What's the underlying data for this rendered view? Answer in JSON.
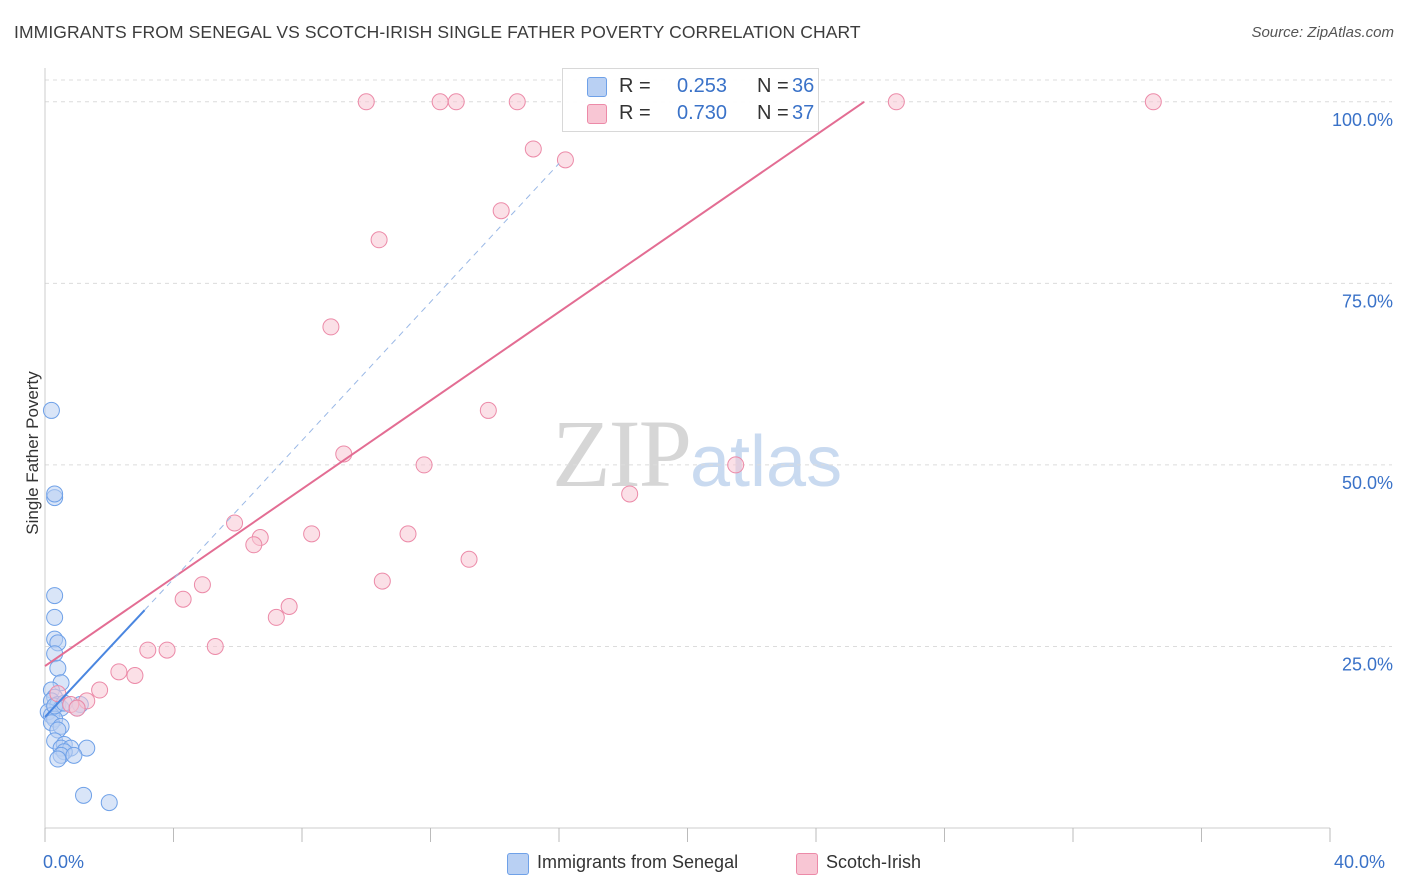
{
  "title": "IMMIGRANTS FROM SENEGAL VS SCOTCH-IRISH SINGLE FATHER POVERTY CORRELATION CHART",
  "source": "Source: ZipAtlas.com",
  "watermark": {
    "part1": "ZIP",
    "part2": "atlas"
  },
  "legend": {
    "r_label": "R =",
    "n_label": "N =",
    "series": [
      {
        "name": "Immigrants from Senegal",
        "r": "0.253",
        "n": "36",
        "color": "#6fa1e8",
        "fill": "#b9d0f3"
      },
      {
        "name": "Scotch-Irish",
        "r": "0.730",
        "n": "37",
        "color": "#ec8aa8",
        "fill": "#f8c6d4"
      }
    ]
  },
  "chart_data": {
    "type": "scatter",
    "title": "IMMIGRANTS FROM SENEGAL VS SCOTCH-IRISH SINGLE FATHER POVERTY CORRELATION CHART",
    "xlabel": "",
    "ylabel": "Single Father Poverty",
    "xlim": [
      0,
      40
    ],
    "ylim": [
      0,
      103
    ],
    "x_tick_labels": [
      "0.0%",
      "40.0%"
    ],
    "y_ticks": [
      {
        "value": 25,
        "label": "25.0%"
      },
      {
        "value": 50,
        "label": "50.0%"
      },
      {
        "value": 75,
        "label": "75.0%"
      },
      {
        "value": 100,
        "label": "100.0%"
      }
    ],
    "grid": true,
    "legend_position": "top-center",
    "series": [
      {
        "name": "Immigrants from Senegal",
        "color": "#4a86e0",
        "points": [
          [
            0.2,
            57.5
          ],
          [
            0.3,
            45.5
          ],
          [
            0.3,
            46
          ],
          [
            0.3,
            32
          ],
          [
            0.3,
            29
          ],
          [
            0.3,
            26
          ],
          [
            0.4,
            25.5
          ],
          [
            0.3,
            24
          ],
          [
            0.4,
            22
          ],
          [
            0.5,
            20
          ],
          [
            0.2,
            19
          ],
          [
            0.3,
            18
          ],
          [
            0.2,
            17.5
          ],
          [
            0.4,
            17
          ],
          [
            0.5,
            16.5
          ],
          [
            0.1,
            16
          ],
          [
            0.2,
            15.5
          ],
          [
            0.3,
            15
          ],
          [
            0.2,
            14.5
          ],
          [
            0.5,
            14
          ],
          [
            0.4,
            13.5
          ],
          [
            0.3,
            12
          ],
          [
            0.6,
            11.5
          ],
          [
            0.5,
            11
          ],
          [
            0.8,
            11
          ],
          [
            1.3,
            11
          ],
          [
            0.6,
            10.5
          ],
          [
            0.5,
            10
          ],
          [
            0.9,
            10
          ],
          [
            0.4,
            9.5
          ],
          [
            1.2,
            4.5
          ],
          [
            2.0,
            3.5
          ],
          [
            1.1,
            17
          ],
          [
            0.3,
            16.8
          ],
          [
            0.6,
            17.2
          ],
          [
            1.0,
            16.5
          ]
        ],
        "trend": {
          "x": [
            0.0,
            3.1
          ],
          "y": [
            15.3,
            30.0
          ]
        },
        "trend_extension": {
          "x": [
            3.1,
            16.0
          ],
          "y": [
            30.0,
            91.5
          ]
        }
      },
      {
        "name": "Scotch-Irish",
        "color": "#e36d93",
        "points": [
          [
            10.0,
            100
          ],
          [
            12.3,
            100
          ],
          [
            12.8,
            100
          ],
          [
            14.7,
            100
          ],
          [
            26.5,
            100
          ],
          [
            34.5,
            100
          ],
          [
            15.2,
            93.5
          ],
          [
            16.2,
            92
          ],
          [
            14.2,
            85
          ],
          [
            10.4,
            81
          ],
          [
            8.9,
            69
          ],
          [
            13.8,
            57.5
          ],
          [
            9.3,
            51.5
          ],
          [
            11.8,
            50
          ],
          [
            21.5,
            50
          ],
          [
            18.2,
            46
          ],
          [
            5.9,
            42
          ],
          [
            6.7,
            40
          ],
          [
            6.5,
            39
          ],
          [
            8.3,
            40.5
          ],
          [
            11.3,
            40.5
          ],
          [
            13.2,
            37
          ],
          [
            4.9,
            33.5
          ],
          [
            4.3,
            31.5
          ],
          [
            10.5,
            34
          ],
          [
            7.6,
            30.5
          ],
          [
            7.2,
            29
          ],
          [
            5.3,
            25
          ],
          [
            3.2,
            24.5
          ],
          [
            3.8,
            24.5
          ],
          [
            2.3,
            21.5
          ],
          [
            2.8,
            21
          ],
          [
            1.7,
            19
          ],
          [
            0.4,
            18.5
          ],
          [
            1.3,
            17.5
          ],
          [
            0.8,
            17
          ],
          [
            1.0,
            16.5
          ]
        ],
        "trend": {
          "x": [
            0.0,
            25.5
          ],
          "y": [
            22.3,
            100.0
          ]
        }
      }
    ]
  }
}
